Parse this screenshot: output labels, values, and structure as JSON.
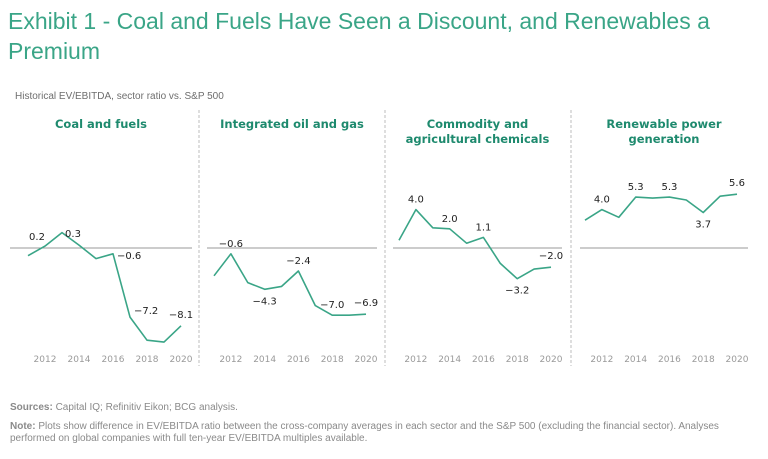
{
  "title": "Exhibit 1 - Coal and Fuels Have Seen a Discount, and Renewables a Premium",
  "subtitle": "Historical EV/EBITDA, sector ratio vs. S&P 500",
  "colors": {
    "line": "#3aa587",
    "title": "#3aa587",
    "panel_title": "#1e8a6e",
    "zero_line": "#9a9a9a",
    "separator": "#c8c8c8"
  },
  "chart_data": [
    {
      "type": "line",
      "title": "Coal and fuels",
      "x": [
        2011,
        2012,
        2013,
        2014,
        2015,
        2016,
        2017,
        2018,
        2019,
        2020
      ],
      "values": [
        -0.8,
        0.2,
        1.6,
        0.3,
        -1.1,
        -0.6,
        -7.2,
        -9.6,
        -9.8,
        -8.1
      ],
      "labels": [
        {
          "year": 2012,
          "text": "0.2"
        },
        {
          "year": 2014,
          "text": "0.3"
        },
        {
          "year": 2016,
          "text": "−0.6"
        },
        {
          "year": 2017,
          "text": "−7.2"
        },
        {
          "year": 2020,
          "text": "−8.1"
        }
      ],
      "xticks": [
        "2012",
        "2014",
        "2016",
        "2018",
        "2020"
      ],
      "baseline": 0
    },
    {
      "type": "line",
      "title": "Integrated oil and gas",
      "x": [
        2011,
        2012,
        2013,
        2014,
        2015,
        2016,
        2017,
        2018,
        2019,
        2020
      ],
      "values": [
        -2.9,
        -0.6,
        -3.6,
        -4.3,
        -4.0,
        -2.4,
        -6.0,
        -7.0,
        -7.0,
        -6.9
      ],
      "labels": [
        {
          "year": 2012,
          "text": "−0.6"
        },
        {
          "year": 2014,
          "text": "−4.3"
        },
        {
          "year": 2016,
          "text": "−2.4"
        },
        {
          "year": 2018,
          "text": "−7.0"
        },
        {
          "year": 2020,
          "text": "−6.9"
        }
      ],
      "xticks": [
        "2012",
        "2014",
        "2016",
        "2018",
        "2020"
      ],
      "baseline": 0
    },
    {
      "type": "line",
      "title": "Commodity and agricultural chemicals",
      "title_lines": [
        "Commodity and",
        "agricultural chemicals"
      ],
      "x": [
        2011,
        2012,
        2013,
        2014,
        2015,
        2016,
        2017,
        2018,
        2019,
        2020
      ],
      "values": [
        0.8,
        4.0,
        2.1,
        2.0,
        0.5,
        1.1,
        -1.6,
        -3.2,
        -2.2,
        -2.0
      ],
      "labels": [
        {
          "year": 2012,
          "text": "4.0"
        },
        {
          "year": 2014,
          "text": "2.0"
        },
        {
          "year": 2016,
          "text": "1.1"
        },
        {
          "year": 2018,
          "text": "−3.2"
        },
        {
          "year": 2020,
          "text": "−2.0"
        }
      ],
      "xticks": [
        "2012",
        "2014",
        "2016",
        "2018",
        "2020"
      ],
      "baseline": 0
    },
    {
      "type": "line",
      "title": "Renewable power generation",
      "title_lines": [
        "Renewable power",
        "generation"
      ],
      "x": [
        2011,
        2012,
        2013,
        2014,
        2015,
        2016,
        2017,
        2018,
        2019,
        2020
      ],
      "values": [
        2.9,
        4.0,
        3.2,
        5.3,
        5.2,
        5.3,
        5.0,
        3.7,
        5.4,
        5.6
      ],
      "labels": [
        {
          "year": 2012,
          "text": "4.0"
        },
        {
          "year": 2014,
          "text": "5.3"
        },
        {
          "year": 2016,
          "text": "5.3"
        },
        {
          "year": 2018,
          "text": "3.7"
        },
        {
          "year": 2020,
          "text": "5.6"
        }
      ],
      "xticks": [
        "2012",
        "2014",
        "2016",
        "2018",
        "2020"
      ],
      "baseline": 0
    }
  ],
  "footer": {
    "sources_label": "Sources:",
    "sources_text": " Capital IQ; Refinitiv Eikon; BCG analysis.",
    "note_label": "Note:",
    "note_text": " Plots show difference in EV/EBITDA ratio between the cross-company averages in each sector and the S&P 500 (excluding the financial sector). Analyses performed on global companies with full ten-year EV/EBITDA multiples available."
  }
}
